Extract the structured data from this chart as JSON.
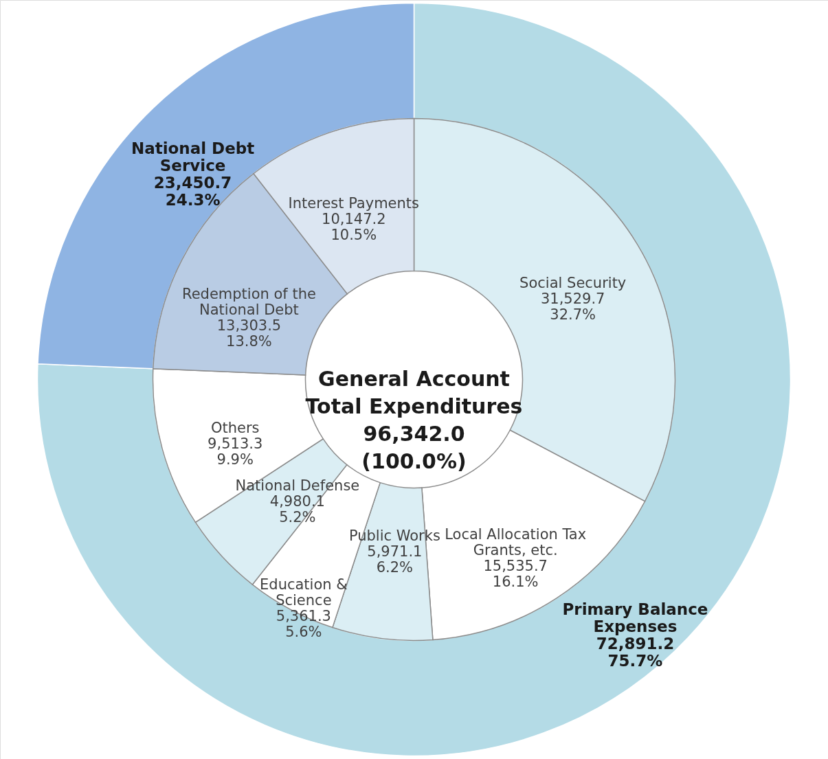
{
  "chart_data": [
    {
      "type": "donut",
      "categories": [
        "Primary Balance\nExpenses",
        "National Debt\nService"
      ],
      "values": [
        72891.2,
        23450.7
      ],
      "value_labels": [
        "72,891.2\n75.7%",
        "23,450.7\n24.3%"
      ],
      "colors": [
        "#b4dbe6",
        "#8fb4e3"
      ]
    },
    {
      "type": "donut",
      "categories": [
        "Social Security",
        "Local Allocation Tax\nGrants, etc.",
        "Public Works",
        "Education &\nScience",
        "National Defense",
        "Others",
        "Redemption of the\nNational Debt",
        "Interest Payments"
      ],
      "values": [
        31529.7,
        15535.7,
        5971.1,
        5361.3,
        4980.1,
        9513.3,
        13303.5,
        10147.2
      ],
      "value_labels": [
        "31,529.7\n32.7%",
        "15,535.7\n16.1%",
        "5,971.1\n6.2%",
        "5,361.3\n5.6%",
        "4,980.1\n5.2%",
        "9,513.3\n9.9%",
        "13,303.5\n13.8%",
        "10,147.2\n10.5%"
      ],
      "colors": [
        "#dbeef4",
        "#ffffff",
        "#dbeef4",
        "#ffffff",
        "#dbeef4",
        "#ffffff",
        "#b9cce4",
        "#dce6f2"
      ],
      "annotations": [
        "General Account\nTotal Expenditures\n96,342.0\n(100.0%)"
      ]
    }
  ]
}
